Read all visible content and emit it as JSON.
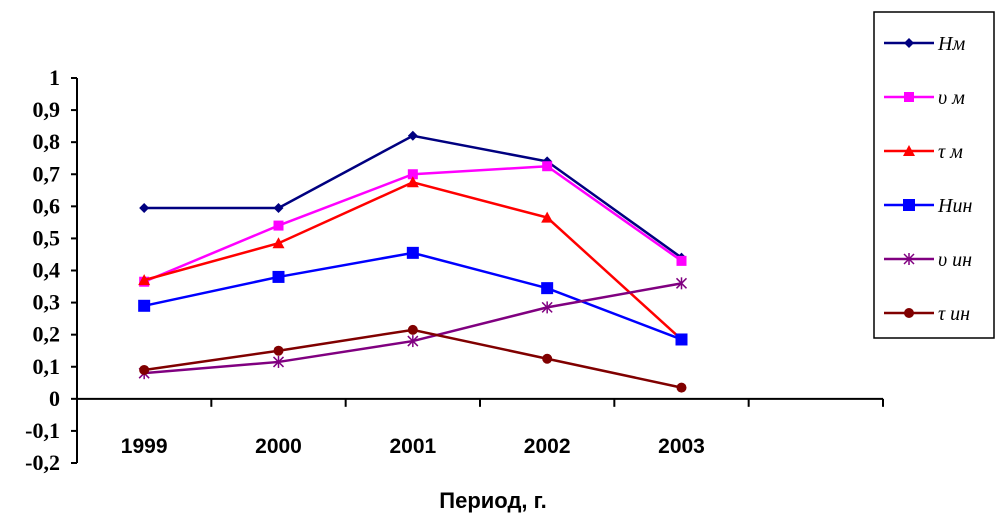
{
  "chart_data": {
    "type": "line",
    "title": "",
    "xlabel": "Период, г.",
    "ylabel": "",
    "categories": [
      "1999",
      "2000",
      "2001",
      "2002",
      "2003"
    ],
    "ylim": [
      -0.2,
      1
    ],
    "yticks": [
      -0.2,
      -0.1,
      0,
      0.1,
      0.2,
      0.3,
      0.4,
      0.5,
      0.6,
      0.7,
      0.8,
      0.9,
      1
    ],
    "ytick_labels": [
      "-0,2",
      "-0,1",
      "0",
      "0,1",
      "0,2",
      "0,3",
      "0,4",
      "0,5",
      "0,6",
      "0,7",
      "0,8",
      "0,9",
      "1"
    ],
    "grid": false,
    "legend_position": "right",
    "series": [
      {
        "name": "Нм",
        "color": "#000080",
        "marker": "diamond",
        "values": [
          0.595,
          0.595,
          0.82,
          0.74,
          0.44
        ]
      },
      {
        "name": "υ м",
        "color": "#ff00ff",
        "marker": "square",
        "values": [
          0.365,
          0.54,
          0.7,
          0.725,
          0.43
        ]
      },
      {
        "name": "τ м",
        "color": "#ff0000",
        "marker": "triangle",
        "values": [
          0.37,
          0.485,
          0.675,
          0.565,
          0.185
        ]
      },
      {
        "name": "Нин",
        "color": "#0000ff",
        "marker": "square-large",
        "values": [
          0.29,
          0.38,
          0.455,
          0.345,
          0.185
        ]
      },
      {
        "name": "υ ин",
        "color": "#800080",
        "marker": "star",
        "values": [
          0.08,
          0.115,
          0.18,
          0.285,
          0.36
        ]
      },
      {
        "name": "τ ин",
        "color": "#800000",
        "marker": "circle",
        "values": [
          0.09,
          0.15,
          0.215,
          0.125,
          0.035
        ]
      }
    ]
  }
}
